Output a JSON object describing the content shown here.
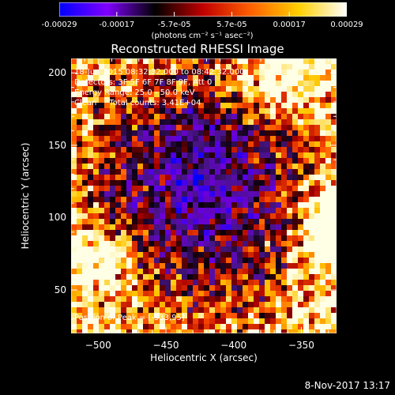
{
  "colorbar": {
    "tick_labels": [
      "-0.00029",
      "-0.00017",
      "-5.7e-05",
      "5.7e-05",
      "0.00017",
      "0.00029"
    ],
    "units": "(photons cm⁻² s⁻¹ asec⁻²)",
    "colors": [
      "#0000ff",
      "#8000ff",
      "#000000",
      "#c00000",
      "#ff6000",
      "#ffd000",
      "#ffffff"
    ]
  },
  "title": "Reconstructed RHESSI Image",
  "annotations": {
    "line1": "18-Jun-2015 08:32:32.000 to 08:42:32.000",
    "line2": "Detectors: 3F 5F 6F 7F 8F 9F, Att 0",
    "line3": "Energy Range: 25.0 - 50.0 keV",
    "line4": "Clean     Total counts: 3.41E+04",
    "peak": "Position of Peak = [-333,95]"
  },
  "footer": "8-Nov-2017 13:17",
  "chart_data": {
    "type": "heatmap",
    "title": "Reconstructed RHESSI Image",
    "xlabel": "Heliocentric X (arcsec)",
    "ylabel": "Heliocentric Y (arcsec)",
    "xlim": [
      -520,
      -324
    ],
    "ylim": [
      20,
      210
    ],
    "x_ticks": [
      -500,
      -450,
      -400,
      -350
    ],
    "y_ticks": [
      50,
      100,
      150,
      200
    ],
    "colorbar_range": [
      -0.00029,
      0.00029
    ],
    "peak_position": [
      -333,
      95
    ]
  }
}
